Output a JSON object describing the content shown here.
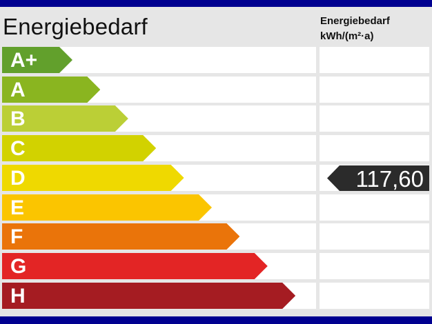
{
  "title": "Energiebedarf",
  "column_header": {
    "line1": "Energiebedarf",
    "line2": "kWh/(m²·a)"
  },
  "classes": [
    {
      "label": "A+",
      "color": "#62a02c"
    },
    {
      "label": "A",
      "color": "#8ab520"
    },
    {
      "label": "B",
      "color": "#bbcf36"
    },
    {
      "label": "C",
      "color": "#d2d200"
    },
    {
      "label": "D",
      "color": "#efd900"
    },
    {
      "label": "E",
      "color": "#fbc500"
    },
    {
      "label": "F",
      "color": "#ea740a"
    },
    {
      "label": "G",
      "color": "#e32525"
    },
    {
      "label": "H",
      "color": "#a51c22"
    }
  ],
  "value": {
    "text": "117,60",
    "class": "D"
  },
  "colors": {
    "band": "#000090",
    "marker": "#2b2b2b"
  }
}
